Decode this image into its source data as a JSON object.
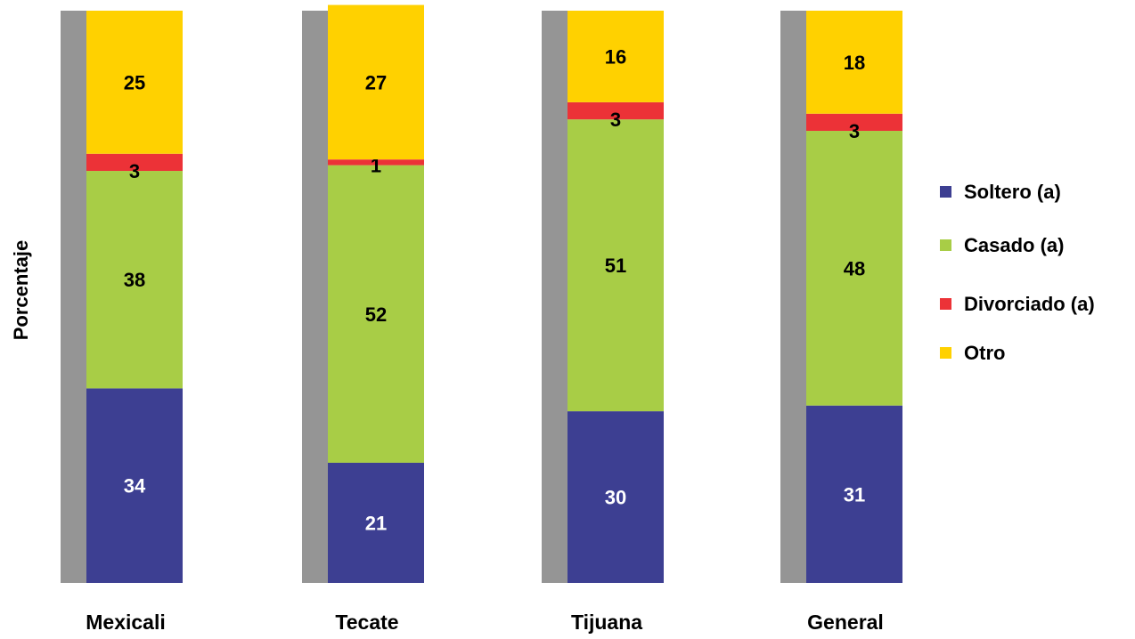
{
  "chart_data": {
    "type": "bar",
    "stacked": true,
    "normalized_100": true,
    "title": "",
    "xlabel": "",
    "ylabel": "Porcentaje",
    "ylim": [
      0,
      100
    ],
    "grid": false,
    "legend_position": "right",
    "categories": [
      "Mexicali",
      "Tecate",
      "Tijuana",
      "General"
    ],
    "series": [
      {
        "name": "Soltero (a)",
        "values": [
          34,
          21,
          30,
          31
        ],
        "color": "#3d3f92",
        "label_color": "#ffffff"
      },
      {
        "name": "Casado (a)",
        "values": [
          38,
          52,
          51,
          48
        ],
        "color": "#a8cd46",
        "label_color": "#000000"
      },
      {
        "name": "Divorciado (a)",
        "values": [
          3,
          1,
          3,
          3
        ],
        "color": "#ec3237",
        "label_color": "#000000"
      },
      {
        "name": "Otro",
        "values": [
          25,
          27,
          16,
          18
        ],
        "color": "#ffd100",
        "label_color": "#000000"
      }
    ],
    "side_bar_color": "#959595"
  }
}
